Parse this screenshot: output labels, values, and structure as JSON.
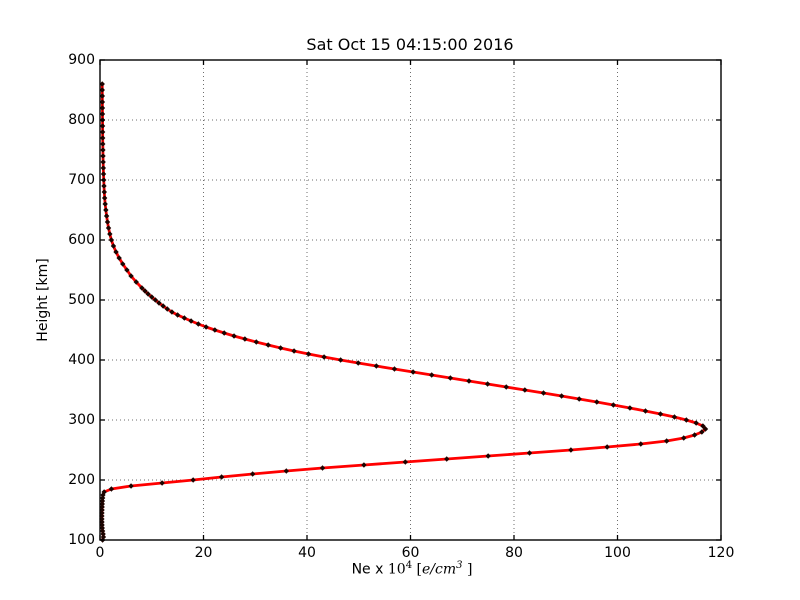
{
  "chart_data": {
    "type": "line",
    "title": "Sat Oct 15 04:15:00 2016",
    "xlabel": "Ne x 10^4 [e/cm^3 ]",
    "xlabel_parts": {
      "pre": "Ne x ",
      "base": "10",
      "sup1": "4",
      "open": "  [",
      "math": "e/cm",
      "sup2": "3",
      "close": " ]"
    },
    "ylabel": "Height [km]",
    "xlim": [
      0,
      120
    ],
    "ylim": [
      100,
      900
    ],
    "xticks": [
      0,
      20,
      40,
      60,
      80,
      100,
      120
    ],
    "yticks": [
      100,
      200,
      300,
      400,
      500,
      600,
      700,
      800,
      900
    ],
    "grid": "dotted both axes",
    "legend_position": "none",
    "line_color": "#ff0000",
    "marker_color": "#1c0400",
    "marker_shape": "diamond",
    "peak": {
      "ne_1e4_per_cm3": 117.0,
      "height_km": 285
    },
    "series": [
      {
        "name": "electron-density-profile",
        "height_km": [
          100,
          105,
          110,
          115,
          120,
          125,
          130,
          135,
          140,
          145,
          150,
          155,
          160,
          165,
          170,
          175,
          180,
          185,
          190,
          195,
          200,
          205,
          210,
          215,
          220,
          225,
          230,
          235,
          240,
          245,
          250,
          255,
          260,
          265,
          270,
          275,
          280,
          285,
          290,
          295,
          300,
          305,
          310,
          315,
          320,
          325,
          330,
          335,
          340,
          345,
          350,
          355,
          360,
          365,
          370,
          375,
          380,
          385,
          390,
          395,
          400,
          405,
          410,
          415,
          420,
          425,
          430,
          435,
          440,
          445,
          450,
          455,
          460,
          465,
          470,
          475,
          480,
          485,
          490,
          495,
          500,
          505,
          510,
          515,
          520,
          530,
          540,
          550,
          560,
          570,
          580,
          590,
          600,
          610,
          620,
          630,
          640,
          650,
          660,
          670,
          680,
          690,
          700,
          710,
          720,
          730,
          740,
          750,
          760,
          770,
          780,
          790,
          800,
          810,
          820,
          830,
          840,
          850,
          860
        ],
        "ne_1e4_per_cm3": [
          0.5,
          0.66,
          0.6,
          0.5,
          0.44,
          0.4,
          0.38,
          0.37,
          0.37,
          0.38,
          0.4,
          0.42,
          0.44,
          0.47,
          0.51,
          0.57,
          0.8,
          2.2,
          6.0,
          12.0,
          18.0,
          23.5,
          29.5,
          36.0,
          43.0,
          51.0,
          59.0,
          67.0,
          75.0,
          83.0,
          91.0,
          98.0,
          104.5,
          109.5,
          112.8,
          114.9,
          116.3,
          117.0,
          116.5,
          115.2,
          113.3,
          111.0,
          108.3,
          105.4,
          102.4,
          99.2,
          96.0,
          92.6,
          89.2,
          85.7,
          82.1,
          78.5,
          74.9,
          71.3,
          67.7,
          64.1,
          60.5,
          56.9,
          53.4,
          49.9,
          46.5,
          43.3,
          40.3,
          37.5,
          34.9,
          32.5,
          30.2,
          28.0,
          25.9,
          24.0,
          22.2,
          20.5,
          19.0,
          17.6,
          16.3,
          15.0,
          13.9,
          13.0,
          12.2,
          11.4,
          10.7,
          10.0,
          9.3,
          8.7,
          8.1,
          7.0,
          6.0,
          5.2,
          4.4,
          3.7,
          3.1,
          2.6,
          2.2,
          1.9,
          1.65,
          1.45,
          1.28,
          1.13,
          1.0,
          0.9,
          0.83,
          0.77,
          0.72,
          0.68,
          0.64,
          0.61,
          0.58,
          0.56,
          0.54,
          0.52,
          0.51,
          0.5,
          0.49,
          0.48,
          0.47,
          0.46,
          0.45,
          0.44,
          0.43
        ]
      }
    ]
  }
}
